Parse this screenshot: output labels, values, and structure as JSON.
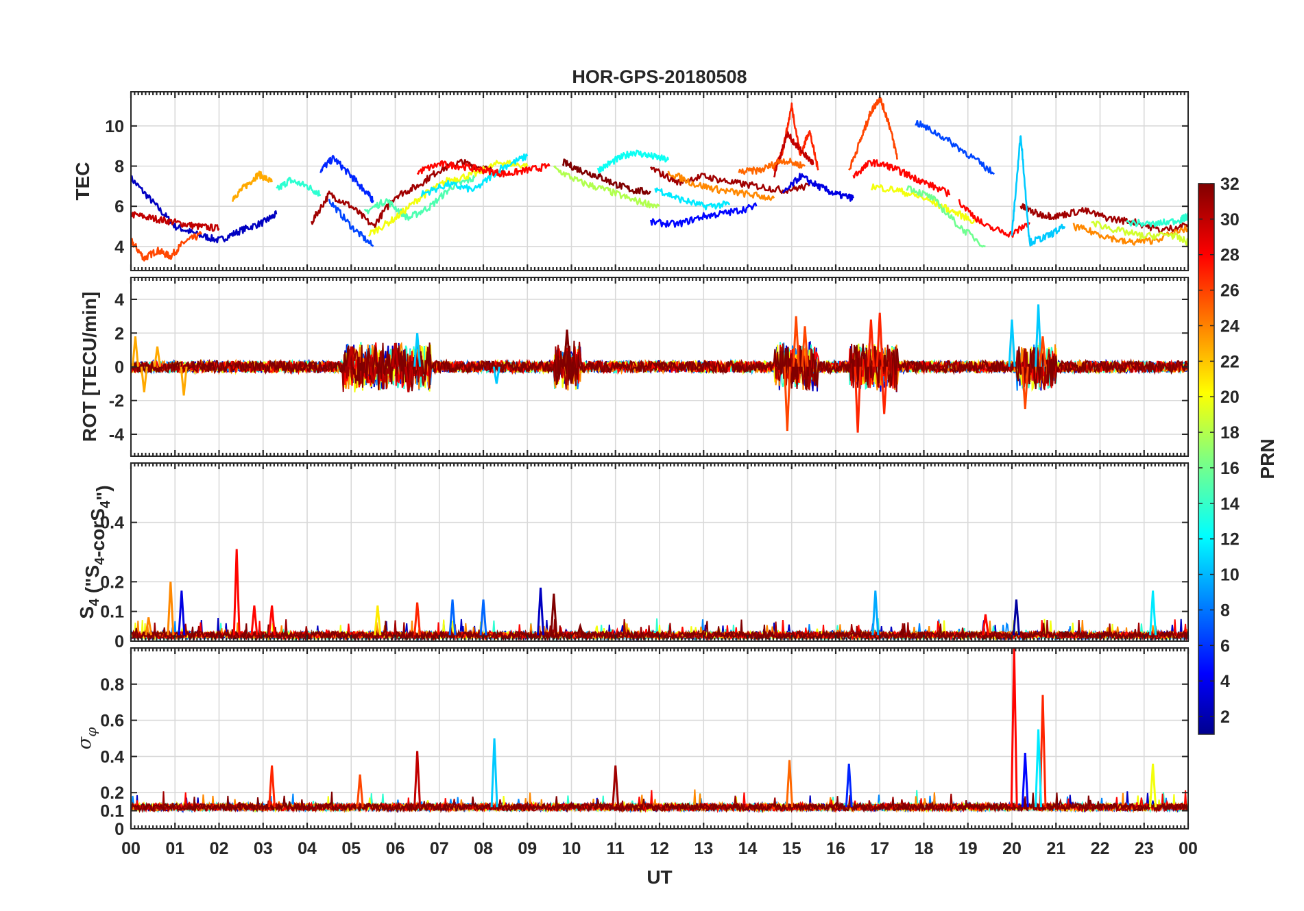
{
  "chart_data": {
    "type": "line",
    "title": "HOR-GPS-20180508",
    "xlabel": "UT",
    "xlim": [
      0,
      24
    ],
    "x_tick_labels": [
      "00",
      "01",
      "02",
      "03",
      "04",
      "05",
      "06",
      "07",
      "08",
      "09",
      "10",
      "11",
      "12",
      "13",
      "14",
      "15",
      "16",
      "17",
      "18",
      "19",
      "20",
      "21",
      "22",
      "23",
      "00"
    ],
    "colorbar": {
      "label": "PRN",
      "range": [
        1,
        32
      ],
      "colormap": "jet",
      "tick_labels": [
        "2",
        "4",
        "6",
        "8",
        "10",
        "12",
        "14",
        "16",
        "18",
        "20",
        "22",
        "24",
        "26",
        "28",
        "30",
        "32"
      ]
    },
    "panels": [
      {
        "id": "tec",
        "ylabel": "TEC",
        "ylim": [
          2.8,
          11.7
        ],
        "y_tick_labels": [
          "4",
          "6",
          "8",
          "10"
        ],
        "y_ticks": [
          4,
          6,
          8,
          10
        ],
        "series": [
          {
            "prn": 3,
            "x": [
              0,
              0.5,
              1,
              1.5,
              2,
              2.5,
              3,
              3.3
            ],
            "y": [
              7.4,
              6.2,
              5.0,
              4.6,
              4.3,
              4.8,
              5.2,
              5.6
            ]
          },
          {
            "prn": 26,
            "x": [
              0,
              0.3,
              0.6,
              0.9,
              1.2,
              1.6
            ],
            "y": [
              4.3,
              3.4,
              3.8,
              3.5,
              4.2,
              4.6
            ]
          },
          {
            "prn": 30,
            "x": [
              0,
              0.5,
              1,
              1.5,
              2
            ],
            "y": [
              5.6,
              5.4,
              5.2,
              5.0,
              4.9
            ]
          },
          {
            "prn": 23,
            "x": [
              2.3,
              2.6,
              2.9,
              3.2
            ],
            "y": [
              6.4,
              7.0,
              7.6,
              7.2
            ]
          },
          {
            "prn": 14,
            "x": [
              3.3,
              3.6,
              4,
              4.3
            ],
            "y": [
              6.8,
              7.3,
              7.0,
              6.6
            ]
          },
          {
            "prn": 6,
            "x": [
              4.3,
              4.6,
              5,
              5.3,
              5.5
            ],
            "y": [
              7.8,
              8.4,
              7.5,
              6.8,
              6.3
            ]
          },
          {
            "prn": 7,
            "x": [
              4.5,
              5,
              5.5
            ],
            "y": [
              6.3,
              5.0,
              4.0
            ]
          },
          {
            "prn": 31,
            "x": [
              4.1,
              4.5,
              5,
              5.5,
              6,
              6.5,
              7,
              7.5,
              8,
              8.5
            ],
            "y": [
              5.2,
              6.6,
              6.0,
              5.0,
              6.5,
              7.0,
              7.8,
              8.2,
              7.9,
              7.6
            ]
          },
          {
            "prn": 15,
            "x": [
              5.3,
              5.8,
              6.3,
              6.8,
              7.3,
              7.8
            ],
            "y": [
              5.7,
              6.3,
              5.4,
              6.0,
              7.0,
              7.4
            ]
          },
          {
            "prn": 20,
            "x": [
              5.4,
              6,
              6.6,
              7.2,
              7.8,
              8.4,
              9
            ],
            "y": [
              4.6,
              5.4,
              6.5,
              7.3,
              7.6,
              8.2,
              8.0
            ]
          },
          {
            "prn": 12,
            "x": [
              6.6,
              7.2,
              7.8,
              8.4,
              9.0
            ],
            "y": [
              6.6,
              7.1,
              6.8,
              7.9,
              8.5
            ]
          },
          {
            "prn": 28,
            "x": [
              6.5,
              7,
              7.5,
              8,
              8.5,
              9,
              9.5
            ],
            "y": [
              7.7,
              8.1,
              8.0,
              7.8,
              7.6,
              7.8,
              8.0
            ]
          },
          {
            "prn": 32,
            "x": [
              9.8,
              10.2,
              10.6,
              11,
              11.4,
              11.8
            ],
            "y": [
              8.2,
              7.8,
              7.5,
              7.1,
              6.8,
              6.7
            ]
          },
          {
            "prn": 13,
            "x": [
              10.6,
              11,
              11.4,
              11.8,
              12.2
            ],
            "y": [
              7.8,
              8.3,
              8.7,
              8.5,
              8.3
            ]
          },
          {
            "prn": 18,
            "x": [
              9.6,
              10.2,
              10.8,
              11.4,
              12
            ],
            "y": [
              7.9,
              7.2,
              6.8,
              6.3,
              6.0
            ]
          },
          {
            "prn": 5,
            "x": [
              11.8,
              12.4,
              13,
              13.6,
              14.2
            ],
            "y": [
              5.2,
              5.1,
              5.5,
              5.7,
              6.0
            ]
          },
          {
            "prn": 12,
            "x": [
              11.9,
              12.4,
              13,
              13.6
            ],
            "y": [
              6.9,
              6.4,
              6.0,
              6.1
            ]
          },
          {
            "prn": 31,
            "x": [
              11.8,
              12.4,
              13,
              13.6,
              14.2,
              14.8,
              15.4
            ],
            "y": [
              7.9,
              7.2,
              7.5,
              7.2,
              7.0,
              6.8,
              7.0
            ]
          },
          {
            "prn": 24,
            "x": [
              12.2,
              12.8,
              13.4,
              14,
              14.6
            ],
            "y": [
              7.7,
              7.1,
              6.8,
              6.6,
              6.4
            ]
          },
          {
            "prn": 27,
            "x": [
              14.6,
              14.8,
              15,
              15.2,
              15.4,
              15.6
            ],
            "y": [
              7.8,
              8.8,
              11.0,
              8.5,
              9.8,
              7.8
            ]
          },
          {
            "prn": 30,
            "x": [
              14.6,
              14.9,
              15.2,
              15.5
            ],
            "y": [
              7.6,
              9.6,
              8.8,
              8.1
            ]
          },
          {
            "prn": 4,
            "x": [
              14.8,
              15.2,
              15.6,
              16,
              16.4
            ],
            "y": [
              6.6,
              7.5,
              7.0,
              6.6,
              6.4
            ]
          },
          {
            "prn": 25,
            "x": [
              13.8,
              14.3,
              14.8,
              15.3
            ],
            "y": [
              7.7,
              7.8,
              8.3,
              8.0
            ]
          },
          {
            "prn": 26,
            "x": [
              16.3,
              16.6,
              16.8,
              17,
              17.2,
              17.4
            ],
            "y": [
              7.8,
              9.5,
              10.7,
              11.4,
              10.2,
              8.4
            ]
          },
          {
            "prn": 28,
            "x": [
              16.4,
              16.8,
              17.2,
              17.6,
              18,
              18.6
            ],
            "y": [
              7.5,
              8.2,
              8.0,
              7.6,
              7.2,
              6.6
            ]
          },
          {
            "prn": 20,
            "x": [
              16.8,
              17.4,
              18,
              18.6,
              19.2
            ],
            "y": [
              7.0,
              6.8,
              6.4,
              5.8,
              5.2
            ]
          },
          {
            "prn": 7,
            "x": [
              17.8,
              18.4,
              19,
              19.6
            ],
            "y": [
              10.2,
              9.5,
              8.6,
              7.6
            ]
          },
          {
            "prn": 16,
            "x": [
              17.6,
              18.2,
              18.8,
              19.4
            ],
            "y": [
              7.0,
              6.4,
              5.0,
              4.0
            ]
          },
          {
            "prn": 28,
            "x": [
              18.8,
              19.4,
              20,
              20.4
            ],
            "y": [
              6.2,
              5.0,
              4.6,
              5.2
            ]
          },
          {
            "prn": 31,
            "x": [
              20.2,
              20.6,
              21,
              21.6,
              22.2,
              22.8,
              23.4,
              24
            ],
            "y": [
              6.0,
              5.6,
              5.5,
              5.8,
              5.4,
              5.2,
              4.8,
              5.1
            ]
          },
          {
            "prn": 11,
            "x": [
              20.0,
              20.2,
              20.4,
              20.8,
              21.2
            ],
            "y": [
              4.6,
              9.6,
              4.2,
              4.5,
              5.0
            ]
          },
          {
            "prn": 24,
            "x": [
              21.4,
              22,
              22.6,
              23.2,
              24
            ],
            "y": [
              5.0,
              4.6,
              4.2,
              4.3,
              4.9
            ]
          },
          {
            "prn": 19,
            "x": [
              21.8,
              22.4,
              23,
              23.6,
              24
            ],
            "y": [
              5.2,
              4.8,
              4.5,
              4.6,
              4.2
            ]
          },
          {
            "prn": 14,
            "x": [
              22.6,
              23.2,
              23.8,
              24
            ],
            "y": [
              5.2,
              5.1,
              5.3,
              5.5
            ]
          }
        ]
      },
      {
        "id": "rot",
        "ylabel": "ROT [TECU/min]",
        "ylim": [
          -5.3,
          5.3
        ],
        "y_tick_labels": [
          "-4",
          "-2",
          "0",
          "2",
          "4"
        ],
        "y_ticks": [
          -4,
          -2,
          0,
          2,
          4
        ],
        "baseline": 0,
        "spikes": [
          {
            "prn": 23,
            "x": [
              0.1,
              0.3,
              0.6,
              1.2
            ],
            "y": [
              1.8,
              -1.5,
              1.2,
              -1.7
            ]
          },
          {
            "prn": 30,
            "x": [
              5.0,
              5.5,
              6.0,
              6.3
            ],
            "y": [
              1.2,
              -1.0,
              1.4,
              -1.5
            ]
          },
          {
            "prn": 11,
            "x": [
              6.5,
              8.3
            ],
            "y": [
              2.0,
              -1.0
            ]
          },
          {
            "prn": 32,
            "x": [
              9.9,
              10.0
            ],
            "y": [
              2.2,
              -1.0
            ]
          },
          {
            "prn": 26,
            "x": [
              14.9,
              15.1,
              15.3
            ],
            "y": [
              -3.8,
              3.0,
              2.4
            ]
          },
          {
            "prn": 27,
            "x": [
              16.5,
              16.8,
              17.0,
              17.1
            ],
            "y": [
              -3.9,
              2.8,
              3.2,
              -2.8
            ]
          },
          {
            "prn": 11,
            "x": [
              20.0,
              20.6
            ],
            "y": [
              2.8,
              3.7
            ]
          },
          {
            "prn": 26,
            "x": [
              20.3,
              20.7
            ],
            "y": [
              -2.5,
              1.8
            ]
          }
        ]
      },
      {
        "id": "s4",
        "ylabel": "S4 (\"S4-corS4\")",
        "ylim": [
          0,
          0.6
        ],
        "y_tick_labels": [
          "0",
          "0.1",
          "0.2",
          "0.4"
        ],
        "y_ticks": [
          0,
          0.1,
          0.2,
          0.4
        ],
        "peaks": [
          {
            "prn": 24,
            "x": [
              0.4,
              0.9
            ],
            "y": [
              0.08,
              0.2
            ]
          },
          {
            "prn": 4,
            "x": [
              1.15
            ],
            "y": [
              0.17
            ]
          },
          {
            "prn": 28,
            "x": [
              2.4,
              2.8,
              3.2
            ],
            "y": [
              0.31,
              0.12,
              0.12
            ]
          },
          {
            "prn": 21,
            "x": [
              5.6
            ],
            "y": [
              0.12
            ]
          },
          {
            "prn": 27,
            "x": [
              6.5
            ],
            "y": [
              0.13
            ]
          },
          {
            "prn": 8,
            "x": [
              7.3,
              8.0
            ],
            "y": [
              0.14,
              0.14
            ]
          },
          {
            "prn": 3,
            "x": [
              9.3
            ],
            "y": [
              0.18
            ]
          },
          {
            "prn": 32,
            "x": [
              9.6,
              10.2
            ],
            "y": [
              0.16,
              0.05
            ]
          },
          {
            "prn": 10,
            "x": [
              16.9
            ],
            "y": [
              0.17
            ]
          },
          {
            "prn": 2,
            "x": [
              20.1
            ],
            "y": [
              0.14
            ]
          },
          {
            "prn": 28,
            "x": [
              19.4
            ],
            "y": [
              0.09
            ]
          },
          {
            "prn": 12,
            "x": [
              23.2
            ],
            "y": [
              0.17
            ]
          }
        ]
      },
      {
        "id": "sigma_phi",
        "ylabel": "σφ",
        "ylim": [
          0,
          1.0
        ],
        "y_tick_labels": [
          "0",
          "0.1",
          "0.2",
          "0.4",
          "0.6",
          "0.8"
        ],
        "y_ticks": [
          0,
          0.1,
          0.2,
          0.4,
          0.6,
          0.8
        ],
        "baseline": 0.12,
        "peaks": [
          {
            "prn": 27,
            "x": [
              3.2
            ],
            "y": [
              0.35
            ]
          },
          {
            "prn": 26,
            "x": [
              5.2
            ],
            "y": [
              0.3
            ]
          },
          {
            "prn": 30,
            "x": [
              6.5
            ],
            "y": [
              0.43
            ]
          },
          {
            "prn": 11,
            "x": [
              8.25
            ],
            "y": [
              0.5
            ]
          },
          {
            "prn": 31,
            "x": [
              11.0
            ],
            "y": [
              0.35
            ]
          },
          {
            "prn": 25,
            "x": [
              14.95
            ],
            "y": [
              0.38
            ]
          },
          {
            "prn": 6,
            "x": [
              16.3
            ],
            "y": [
              0.36
            ]
          },
          {
            "prn": 28,
            "x": [
              20.05
            ],
            "y": [
              1.0
            ]
          },
          {
            "prn": 5,
            "x": [
              20.3
            ],
            "y": [
              0.42
            ]
          },
          {
            "prn": 27,
            "x": [
              20.7
            ],
            "y": [
              0.74
            ]
          },
          {
            "prn": 12,
            "x": [
              20.6
            ],
            "y": [
              0.55
            ]
          },
          {
            "prn": 20,
            "x": [
              23.2
            ],
            "y": [
              0.36
            ]
          }
        ]
      }
    ]
  }
}
